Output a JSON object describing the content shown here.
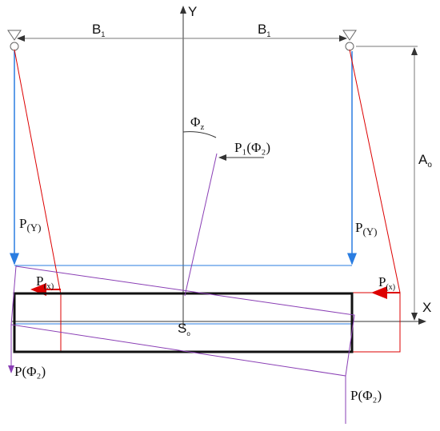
{
  "labels": {
    "axis_y": "Y",
    "axis_x": "X",
    "b1_left": {
      "text": "B",
      "sub": "1"
    },
    "b1_right": {
      "text": "B",
      "sub": "1"
    },
    "a0": {
      "text": "A",
      "sub": "o"
    },
    "s0": {
      "text": "S",
      "sub": "o"
    },
    "phi_z": {
      "text": "Φ",
      "sub": "z"
    },
    "p1_phi": "P₁(Φ₂)",
    "py_left": {
      "text": "P",
      "sub": "(Y)"
    },
    "py_right": {
      "text": "P",
      "sub": "(Y)"
    },
    "px_left": {
      "text": "P",
      "sub": "(x)"
    },
    "px_right": {
      "text": "P",
      "sub": "(x)"
    },
    "pphi_left": "P(Φ₂)",
    "pphi_right": "P(Φ₂)"
  }
}
